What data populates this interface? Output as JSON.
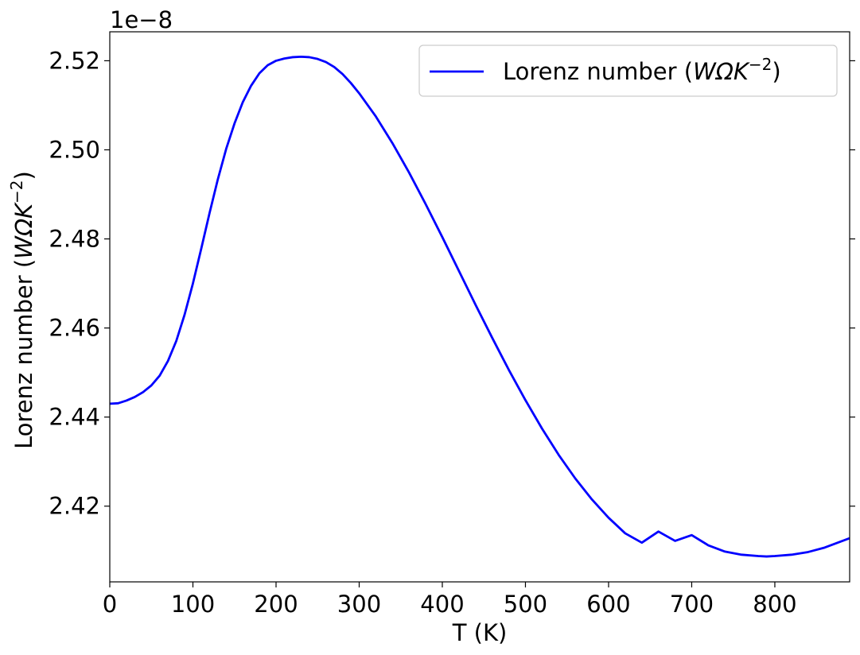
{
  "chart_data": {
    "type": "line",
    "xlabel": "T (K)",
    "ylabel_text": "Lorenz number (",
    "ylabel_math": "WΩK",
    "ylabel_sup": "−2",
    "ylabel_close": ")",
    "offset_text": "1e−8",
    "xlim": [
      0,
      890
    ],
    "ylim": [
      2.403,
      2.5265
    ],
    "x_ticks": [
      0,
      100,
      200,
      300,
      400,
      500,
      600,
      700,
      800
    ],
    "x_tick_labels": [
      "0",
      "100",
      "200",
      "300",
      "400",
      "500",
      "600",
      "700",
      "800"
    ],
    "y_ticks": [
      2.42,
      2.44,
      2.46,
      2.48,
      2.5,
      2.52
    ],
    "y_tick_labels": [
      "2.42",
      "2.44",
      "2.46",
      "2.48",
      "2.50",
      "2.52"
    ],
    "grid": false,
    "legend_position": "top-right",
    "series": [
      {
        "name_text": "Lorenz number (",
        "name_math": "WΩK",
        "name_sup": "−2",
        "name_close": ")",
        "color": "#0000ff",
        "x": [
          0,
          10,
          20,
          30,
          40,
          50,
          60,
          70,
          80,
          90,
          100,
          110,
          120,
          130,
          140,
          150,
          160,
          170,
          180,
          190,
          200,
          210,
          220,
          230,
          240,
          250,
          260,
          270,
          280,
          290,
          300,
          320,
          340,
          360,
          380,
          400,
          420,
          440,
          460,
          480,
          500,
          520,
          540,
          560,
          580,
          600,
          620,
          640,
          660,
          680,
          700,
          720,
          740,
          760,
          780,
          790,
          800,
          820,
          840,
          860,
          890
        ],
        "y": [
          2.443,
          2.4431,
          2.4437,
          2.4445,
          2.4456,
          2.4471,
          2.4493,
          2.4526,
          2.4571,
          2.463,
          2.47,
          2.4778,
          2.4858,
          2.4934,
          2.5002,
          2.5059,
          2.5107,
          2.5144,
          2.5172,
          2.519,
          2.52,
          2.5205,
          2.5208,
          2.5209,
          2.5208,
          2.5204,
          2.5197,
          2.5186,
          2.517,
          2.515,
          2.5127,
          2.5075,
          2.5015,
          2.4949,
          2.4878,
          2.4804,
          2.4728,
          2.4652,
          2.4578,
          2.4506,
          2.4438,
          2.4374,
          2.4315,
          2.4262,
          2.4215,
          2.4174,
          2.4139,
          2.4118,
          2.4143,
          2.4122,
          2.4135,
          2.4112,
          2.4098,
          2.4091,
          2.4088,
          2.4087,
          2.4088,
          2.4091,
          2.4097,
          2.4107,
          2.4128
        ]
      }
    ]
  }
}
